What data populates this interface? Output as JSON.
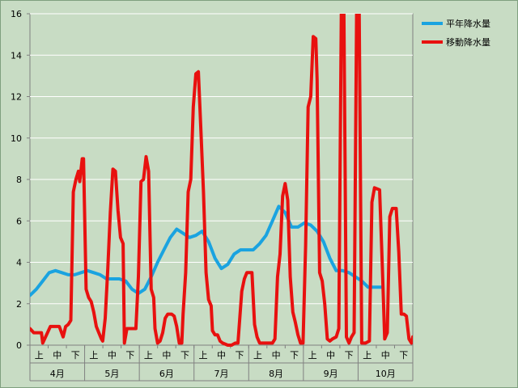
{
  "chart_data": {
    "type": "line",
    "title": "",
    "xlabel": "",
    "ylabel": "",
    "ylim": [
      0,
      16
    ],
    "yticks": [
      0,
      2,
      4,
      6,
      8,
      10,
      12,
      14,
      16
    ],
    "grid": true,
    "legend_position": "top-right",
    "months": [
      "4月",
      "5月",
      "6月",
      "7月",
      "8月",
      "9月",
      "10月"
    ],
    "dekads": [
      "上",
      "中",
      "下"
    ],
    "x_max": 21,
    "colors": {
      "normal": "#1aa3e0",
      "moving": "#e8110f",
      "grid": "#ffffff"
    },
    "series": [
      {
        "name": "平年降水量",
        "points": [
          [
            0,
            2.4
          ],
          [
            0.5,
            2.7
          ],
          [
            1,
            3.1
          ],
          [
            1.5,
            3.5
          ],
          [
            2,
            3.6
          ],
          [
            2.5,
            3.5
          ],
          [
            3,
            3.4
          ],
          [
            3.5,
            3.4
          ],
          [
            4,
            3.5
          ],
          [
            4.5,
            3.6
          ],
          [
            5,
            3.5
          ],
          [
            5.5,
            3.4
          ],
          [
            6,
            3.2
          ],
          [
            6.5,
            3.2
          ],
          [
            7,
            3.2
          ],
          [
            7.5,
            3.1
          ],
          [
            8,
            2.7
          ],
          [
            8.5,
            2.5
          ],
          [
            9,
            2.7
          ],
          [
            9.5,
            3.3
          ],
          [
            10,
            4.0
          ],
          [
            10.5,
            4.6
          ],
          [
            11,
            5.2
          ],
          [
            11.5,
            5.6
          ],
          [
            12,
            5.4
          ],
          [
            12.5,
            5.2
          ],
          [
            13,
            5.3
          ],
          [
            13.5,
            5.5
          ],
          [
            14,
            5.0
          ],
          [
            14.5,
            4.2
          ],
          [
            15,
            3.7
          ],
          [
            15.5,
            3.9
          ],
          [
            16,
            4.4
          ],
          [
            16.5,
            4.6
          ],
          [
            17,
            4.6
          ],
          [
            17.5,
            4.6
          ],
          [
            18,
            4.9
          ],
          [
            18.5,
            5.3
          ],
          [
            19,
            6.0
          ],
          [
            19.5,
            6.7
          ],
          [
            20,
            6.4
          ],
          [
            20.5,
            5.7
          ],
          [
            21,
            5.7
          ],
          [
            21.5,
            5.9
          ],
          [
            22,
            5.8
          ],
          [
            22.5,
            5.5
          ],
          [
            23,
            5.0
          ],
          [
            23.5,
            4.2
          ],
          [
            24,
            3.6
          ],
          [
            24.5,
            3.6
          ],
          [
            25,
            3.5
          ],
          [
            25.5,
            3.3
          ],
          [
            26,
            3.1
          ],
          [
            26.5,
            2.8
          ],
          [
            27,
            2.8
          ],
          [
            27.5,
            2.8
          ]
        ]
      },
      {
        "name": "移動降水量",
        "points": [
          [
            0,
            0.8
          ],
          [
            0.3,
            0.6
          ],
          [
            0.6,
            0.6
          ],
          [
            0.9,
            0.6
          ],
          [
            1,
            0.1
          ],
          [
            1.3,
            0.5
          ],
          [
            1.6,
            0.9
          ],
          [
            2,
            0.9
          ],
          [
            2.3,
            0.9
          ],
          [
            2.6,
            0.4
          ],
          [
            2.8,
            0.9
          ],
          [
            3,
            1.0
          ],
          [
            3.2,
            1.2
          ],
          [
            3.4,
            7.4
          ],
          [
            3.6,
            8.0
          ],
          [
            3.8,
            8.4
          ],
          [
            3.9,
            7.9
          ],
          [
            4.1,
            9.0
          ],
          [
            4.2,
            9.0
          ],
          [
            4.4,
            2.7
          ],
          [
            4.6,
            2.3
          ],
          [
            4.8,
            2.1
          ],
          [
            5,
            1.6
          ],
          [
            5.2,
            0.9
          ],
          [
            5.4,
            0.6
          ],
          [
            5.6,
            0.3
          ],
          [
            5.7,
            0.2
          ],
          [
            5.9,
            1.3
          ],
          [
            6.1,
            3.7
          ],
          [
            6.3,
            6.4
          ],
          [
            6.5,
            8.5
          ],
          [
            6.7,
            8.4
          ],
          [
            6.9,
            6.5
          ],
          [
            7.1,
            5.2
          ],
          [
            7.3,
            4.9
          ],
          [
            7.4,
            0.1
          ],
          [
            7.6,
            0.8
          ],
          [
            7.9,
            0.8
          ],
          [
            8.1,
            0.8
          ],
          [
            8.3,
            0.8
          ],
          [
            8.5,
            3.3
          ],
          [
            8.7,
            7.9
          ],
          [
            8.9,
            8.0
          ],
          [
            9.1,
            9.1
          ],
          [
            9.3,
            8.4
          ],
          [
            9.5,
            2.7
          ],
          [
            9.7,
            2.3
          ],
          [
            9.8,
            0.8
          ],
          [
            10,
            0.1
          ],
          [
            10.2,
            0.2
          ],
          [
            10.4,
            0.6
          ],
          [
            10.6,
            1.3
          ],
          [
            10.8,
            1.5
          ],
          [
            11.1,
            1.5
          ],
          [
            11.3,
            1.4
          ],
          [
            11.5,
            0.9
          ],
          [
            11.7,
            0.1
          ],
          [
            11.9,
            0.1
          ],
          [
            12,
            1.5
          ],
          [
            12.2,
            3.5
          ],
          [
            12.4,
            7.4
          ],
          [
            12.6,
            8.0
          ],
          [
            12.8,
            11.5
          ],
          [
            13,
            13.1
          ],
          [
            13.2,
            13.2
          ],
          [
            13.4,
            10.3
          ],
          [
            13.6,
            7.4
          ],
          [
            13.8,
            3.5
          ],
          [
            14,
            2.2
          ],
          [
            14.2,
            1.9
          ],
          [
            14.3,
            0.7
          ],
          [
            14.5,
            0.5
          ],
          [
            14.7,
            0.5
          ],
          [
            14.9,
            0.2
          ],
          [
            15.1,
            0.1
          ],
          [
            15.5,
            0.0
          ],
          [
            15.8,
            0.0
          ],
          [
            16.1,
            0.1
          ],
          [
            16.3,
            0.1
          ],
          [
            16.6,
            2.6
          ],
          [
            16.8,
            3.2
          ],
          [
            17,
            3.5
          ],
          [
            17.4,
            3.5
          ],
          [
            17.6,
            1.0
          ],
          [
            17.8,
            0.4
          ],
          [
            18,
            0.1
          ],
          [
            18.5,
            0.1
          ],
          [
            19,
            0.1
          ],
          [
            19.2,
            0.3
          ],
          [
            19.4,
            3.3
          ],
          [
            19.6,
            4.4
          ],
          [
            19.8,
            7.2
          ],
          [
            20,
            7.8
          ],
          [
            20.2,
            7.0
          ],
          [
            20.4,
            3.3
          ],
          [
            20.6,
            1.6
          ],
          [
            20.8,
            1.1
          ],
          [
            21,
            0.5
          ],
          [
            21.2,
            0.1
          ],
          [
            21.4,
            0.1
          ],
          [
            21.6,
            4.8
          ],
          [
            21.8,
            11.5
          ],
          [
            22,
            12.0
          ],
          [
            22.2,
            14.9
          ],
          [
            22.4,
            14.8
          ],
          [
            22.5,
            12.8
          ],
          [
            22.7,
            3.5
          ],
          [
            22.9,
            3.1
          ],
          [
            23.1,
            2.0
          ],
          [
            23.3,
            0.3
          ],
          [
            23.5,
            0.2
          ],
          [
            23.7,
            0.3
          ],
          [
            24,
            0.4
          ],
          [
            24.2,
            0.8
          ],
          [
            24.4,
            16.0
          ],
          [
            24.6,
            16.0
          ],
          [
            24.8,
            0.4
          ],
          [
            25,
            0.1
          ],
          [
            25.2,
            0.4
          ],
          [
            25.4,
            0.6
          ],
          [
            25.6,
            16.0
          ],
          [
            25.8,
            16.0
          ],
          [
            26,
            0.1
          ],
          [
            26.3,
            0.1
          ],
          [
            26.6,
            0.2
          ],
          [
            26.8,
            6.9
          ],
          [
            27,
            7.6
          ],
          [
            27.4,
            7.5
          ],
          [
            27.6,
            4.0
          ],
          [
            27.8,
            0.3
          ],
          [
            28,
            0.6
          ],
          [
            28.2,
            6.2
          ],
          [
            28.4,
            6.6
          ],
          [
            28.7,
            6.6
          ],
          [
            28.9,
            4.5
          ],
          [
            29.1,
            1.5
          ],
          [
            29.3,
            1.5
          ],
          [
            29.5,
            1.4
          ],
          [
            29.7,
            0.3
          ],
          [
            29.9,
            0.1
          ],
          [
            30,
            0.4
          ]
        ]
      }
    ]
  }
}
